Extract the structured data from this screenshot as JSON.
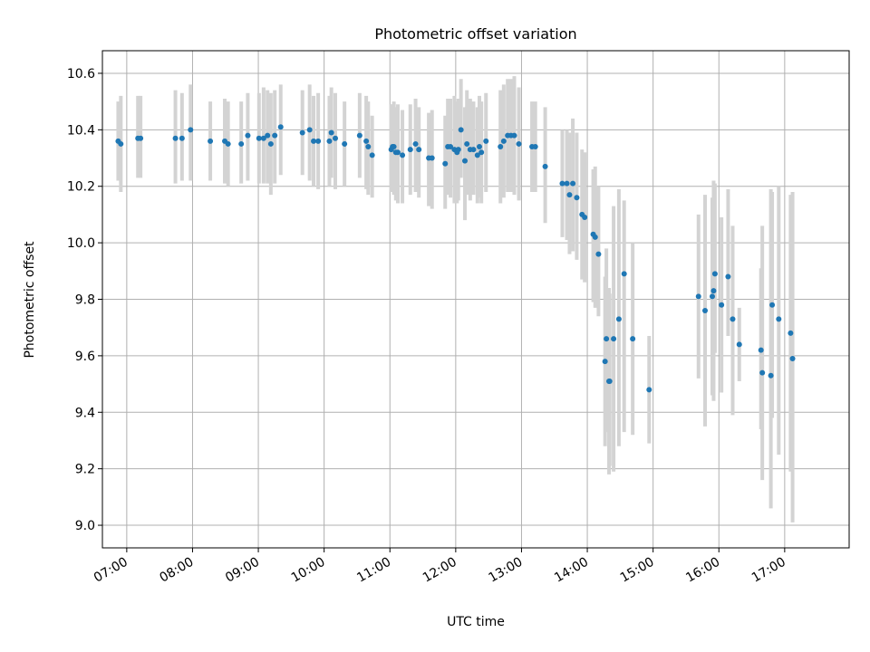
{
  "chart_data": {
    "type": "scatter",
    "title": "Photometric offset variation",
    "xlabel": "UTC time",
    "ylabel": "Photometric offset",
    "x_unit": "hours UTC",
    "xlim": [
      6.63,
      17.98
    ],
    "ylim": [
      8.92,
      10.68
    ],
    "grid": true,
    "legend": "none",
    "xtick_values": [
      7,
      8,
      9,
      10,
      11,
      12,
      13,
      14,
      15,
      16,
      17
    ],
    "xtick_labels": [
      "07:00",
      "08:00",
      "09:00",
      "10:00",
      "11:00",
      "12:00",
      "13:00",
      "14:00",
      "15:00",
      "16:00",
      "17:00"
    ],
    "ytick_values": [
      9.0,
      9.2,
      9.4,
      9.6,
      9.8,
      10.0,
      10.2,
      10.4,
      10.6
    ],
    "ytick_labels": [
      "9.0",
      "9.2",
      "9.4",
      "9.6",
      "9.8",
      "10.0",
      "10.2",
      "10.4",
      "10.6"
    ],
    "colors": {
      "point": "#1f77b4",
      "errorbar": "#d3d3d3",
      "grid": "#b0b0b0"
    },
    "series": [
      {
        "points": [
          [
            6.87,
            10.36,
            10.22,
            10.5
          ],
          [
            6.91,
            10.35,
            10.18,
            10.52
          ],
          [
            7.17,
            10.37,
            10.23,
            10.52
          ],
          [
            7.21,
            10.37,
            10.23,
            10.52
          ],
          [
            7.74,
            10.37,
            10.21,
            10.54
          ],
          [
            7.84,
            10.37,
            10.22,
            10.53
          ],
          [
            7.97,
            10.4,
            10.22,
            10.56
          ],
          [
            8.27,
            10.36,
            10.22,
            10.5
          ],
          [
            8.49,
            10.36,
            10.21,
            10.51
          ],
          [
            8.54,
            10.35,
            10.2,
            10.5
          ],
          [
            8.74,
            10.35,
            10.21,
            10.5
          ],
          [
            8.84,
            10.38,
            10.22,
            10.53
          ],
          [
            9.01,
            10.37,
            10.21,
            10.53
          ],
          [
            9.08,
            10.37,
            10.21,
            10.55
          ],
          [
            9.14,
            10.38,
            10.21,
            10.54
          ],
          [
            9.19,
            10.35,
            10.17,
            10.53
          ],
          [
            9.25,
            10.38,
            10.21,
            10.54
          ],
          [
            9.34,
            10.41,
            10.24,
            10.56
          ],
          [
            9.67,
            10.39,
            10.24,
            10.54
          ],
          [
            9.78,
            10.4,
            10.22,
            10.56
          ],
          [
            9.84,
            10.36,
            10.2,
            10.52
          ],
          [
            9.91,
            10.36,
            10.19,
            10.53
          ],
          [
            10.08,
            10.36,
            10.2,
            10.52
          ],
          [
            10.11,
            10.39,
            10.23,
            10.55
          ],
          [
            10.17,
            10.37,
            10.19,
            10.53
          ],
          [
            10.31,
            10.35,
            10.2,
            10.5
          ],
          [
            10.54,
            10.38,
            10.23,
            10.53
          ],
          [
            10.64,
            10.36,
            10.19,
            10.52
          ],
          [
            10.67,
            10.34,
            10.17,
            10.5
          ],
          [
            10.73,
            10.31,
            10.16,
            10.45
          ],
          [
            11.02,
            10.33,
            10.18,
            10.49
          ],
          [
            11.04,
            10.34,
            10.18,
            10.49
          ],
          [
            11.06,
            10.34,
            10.17,
            10.5
          ],
          [
            11.09,
            10.32,
            10.15,
            10.48
          ],
          [
            11.12,
            10.32,
            10.14,
            10.49
          ],
          [
            11.19,
            10.31,
            10.14,
            10.47
          ],
          [
            11.31,
            10.33,
            10.17,
            10.49
          ],
          [
            11.39,
            10.35,
            10.18,
            10.51
          ],
          [
            11.44,
            10.33,
            10.16,
            10.48
          ],
          [
            11.59,
            10.3,
            10.13,
            10.46
          ],
          [
            11.64,
            10.3,
            10.12,
            10.47
          ],
          [
            11.84,
            10.28,
            10.12,
            10.45
          ],
          [
            11.88,
            10.34,
            10.17,
            10.51
          ],
          [
            11.92,
            10.34,
            10.16,
            10.51
          ],
          [
            11.98,
            10.33,
            10.14,
            10.52
          ],
          [
            12.02,
            10.32,
            10.14,
            10.5
          ],
          [
            12.04,
            10.33,
            10.15,
            10.51
          ],
          [
            12.08,
            10.4,
            10.23,
            10.58
          ],
          [
            12.14,
            10.29,
            10.08,
            10.48
          ],
          [
            12.17,
            10.35,
            10.17,
            10.54
          ],
          [
            12.22,
            10.33,
            10.15,
            10.51
          ],
          [
            12.27,
            10.33,
            10.17,
            10.5
          ],
          [
            12.33,
            10.31,
            10.14,
            10.48
          ],
          [
            12.36,
            10.34,
            10.16,
            10.52
          ],
          [
            12.39,
            10.32,
            10.14,
            10.5
          ],
          [
            12.46,
            10.36,
            10.18,
            10.53
          ],
          [
            12.68,
            10.34,
            10.14,
            10.54
          ],
          [
            12.73,
            10.36,
            10.16,
            10.56
          ],
          [
            12.79,
            10.38,
            10.18,
            10.58
          ],
          [
            12.84,
            10.38,
            10.18,
            10.58
          ],
          [
            12.89,
            10.38,
            10.17,
            10.59
          ],
          [
            12.96,
            10.35,
            10.15,
            10.55
          ],
          [
            13.16,
            10.34,
            10.18,
            10.5
          ],
          [
            13.21,
            10.34,
            10.18,
            10.5
          ],
          [
            13.36,
            10.27,
            10.07,
            10.48
          ],
          [
            13.62,
            10.21,
            10.02,
            10.4
          ],
          [
            13.69,
            10.21,
            10.01,
            10.4
          ],
          [
            13.73,
            10.17,
            9.96,
            10.39
          ],
          [
            13.78,
            10.21,
            9.97,
            10.44
          ],
          [
            13.84,
            10.16,
            9.94,
            10.39
          ],
          [
            13.92,
            10.1,
            9.87,
            10.33
          ],
          [
            13.96,
            10.09,
            9.86,
            10.32
          ],
          [
            14.09,
            10.03,
            9.79,
            10.26
          ],
          [
            14.12,
            10.02,
            9.77,
            10.27
          ],
          [
            14.17,
            9.96,
            9.74,
            10.2
          ],
          [
            14.27,
            9.58,
            9.28,
            9.88
          ],
          [
            14.29,
            9.66,
            9.33,
            9.98
          ],
          [
            14.33,
            9.51,
            9.18,
            9.84
          ],
          [
            14.34,
            9.51,
            9.21,
            9.82
          ],
          [
            14.4,
            9.66,
            9.19,
            10.13
          ],
          [
            14.48,
            9.73,
            9.28,
            10.19
          ],
          [
            14.56,
            9.89,
            9.33,
            10.15
          ],
          [
            14.69,
            9.66,
            9.32,
            10.0
          ],
          [
            14.94,
            9.48,
            9.29,
            9.67
          ],
          [
            15.69,
            9.81,
            9.52,
            10.1
          ],
          [
            15.79,
            9.76,
            9.35,
            10.17
          ],
          [
            15.9,
            9.81,
            9.46,
            10.16
          ],
          [
            15.92,
            9.83,
            9.44,
            10.22
          ],
          [
            15.94,
            9.89,
            9.61,
            10.21
          ],
          [
            16.04,
            9.78,
            9.47,
            10.09
          ],
          [
            16.14,
            9.88,
            9.67,
            10.19
          ],
          [
            16.21,
            9.73,
            9.39,
            10.06
          ],
          [
            16.31,
            9.64,
            9.51,
            9.77
          ],
          [
            16.64,
            9.62,
            9.34,
            9.91
          ],
          [
            16.66,
            9.54,
            9.16,
            10.06
          ],
          [
            16.79,
            9.53,
            9.06,
            10.19
          ],
          [
            16.81,
            9.78,
            9.38,
            10.18
          ],
          [
            16.91,
            9.73,
            9.25,
            10.2
          ],
          [
            17.09,
            9.68,
            9.19,
            10.17
          ],
          [
            17.12,
            9.59,
            9.01,
            10.18
          ]
        ]
      }
    ]
  }
}
